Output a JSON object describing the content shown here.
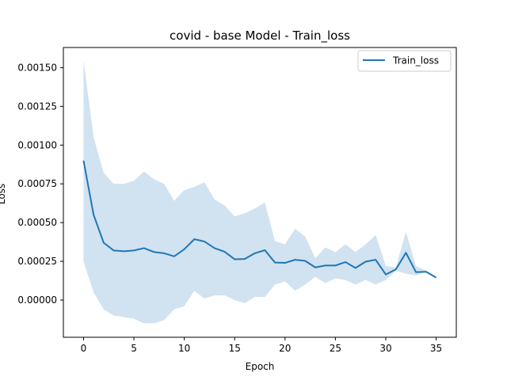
{
  "chart_data": {
    "type": "line",
    "title": "covid - base Model - Train_loss",
    "xlabel": "Epoch",
    "ylabel": "Loss",
    "xlim": [
      -2,
      37
    ],
    "ylim": [
      -0.00024,
      0.00163
    ],
    "xticks": [
      0,
      5,
      10,
      15,
      20,
      25,
      30,
      35
    ],
    "yticks": [
      0.0,
      0.00025,
      0.0005,
      0.00075,
      0.001,
      0.00125,
      0.0015
    ],
    "ytick_labels": [
      "0.00000",
      "0.00025",
      "0.00050",
      "0.00075",
      "0.00100",
      "0.00125",
      "0.00150"
    ],
    "grid": false,
    "legend_position": "top-right",
    "series": [
      {
        "name": "Train_loss",
        "color": "#1f77b4",
        "band_color": "#c6dbee",
        "x": [
          0,
          1,
          2,
          3,
          4,
          5,
          6,
          7,
          8,
          9,
          10,
          11,
          12,
          13,
          14,
          15,
          16,
          17,
          18,
          19,
          20,
          21,
          22,
          23,
          24,
          25,
          26,
          27,
          28,
          29,
          30,
          31,
          32,
          33,
          34,
          35
        ],
        "y": [
          0.0009,
          0.00055,
          0.00037,
          0.00032,
          0.000315,
          0.00032,
          0.000335,
          0.00031,
          0.000302,
          0.000282,
          0.000328,
          0.000393,
          0.000378,
          0.000335,
          0.000312,
          0.000263,
          0.000265,
          0.000302,
          0.000322,
          0.000242,
          0.00024,
          0.00026,
          0.000253,
          0.000211,
          0.000223,
          0.000223,
          0.000245,
          0.000207,
          0.000248,
          0.00026,
          0.000165,
          0.000198,
          0.000305,
          0.00018,
          0.000183,
          0.000145
        ],
        "upper": [
          0.00155,
          0.00105,
          0.00082,
          0.00075,
          0.00075,
          0.00077,
          0.00083,
          0.00078,
          0.00075,
          0.00064,
          0.00071,
          0.00073,
          0.00076,
          0.00065,
          0.00061,
          0.00054,
          0.00056,
          0.00059,
          0.00063,
          0.00038,
          0.00036,
          0.00046,
          0.00041,
          0.00027,
          0.00034,
          0.00031,
          0.00036,
          0.00031,
          0.00036,
          0.00042,
          0.00022,
          0.00021,
          0.00044,
          0.00022,
          0.00019,
          0.000145
        ],
        "lower": [
          0.00025,
          5e-05,
          -6e-05,
          -0.0001,
          -0.00011,
          -0.00012,
          -0.00015,
          -0.00015,
          -0.00013,
          -6e-05,
          -4e-05,
          6e-05,
          1e-05,
          3e-05,
          3e-05,
          0.0,
          -2e-05,
          2e-05,
          2e-05,
          0.0001,
          0.00012,
          6e-05,
          0.0001,
          0.00015,
          0.00011,
          0.00014,
          0.00013,
          0.0001,
          0.00013,
          0.0001,
          0.00013,
          0.00019,
          0.00017,
          0.00016,
          0.00018,
          0.000145
        ]
      }
    ]
  }
}
